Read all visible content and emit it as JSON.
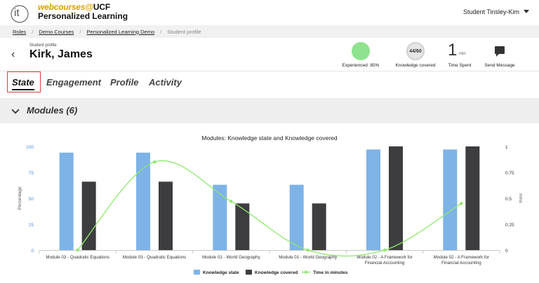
{
  "app": {
    "logo_text": "it",
    "brand_line1_prefix": "webcourses",
    "brand_line1_at": "@",
    "brand_line1_suffix": "UCF",
    "brand_line2": "Personalized Learning",
    "user_name": "Student Tinsley-Kim"
  },
  "breadcrumb": [
    "Roles",
    "Demo Courses",
    "Personalized Learning Demo",
    "Student profile"
  ],
  "header": {
    "label": "Student profile",
    "name": "Kirk, James",
    "stats": {
      "experienced": "Experienced: 85%",
      "knowledge_badge": "44/60",
      "knowledge_caption": "Knowledge covered",
      "time_value": "1",
      "time_unit": "min",
      "time_caption": "Time Spent",
      "message_caption": "Send Message"
    }
  },
  "tabs": [
    "State",
    "Engagement",
    "Profile",
    "Activity"
  ],
  "active_tab": "State",
  "section": {
    "title": "Modules (6)"
  },
  "colors": {
    "knowledge_state": "#7eb3e8",
    "knowledge_covered": "#3d3d40",
    "time": "#8ee86a",
    "experienced": "#8fe38f"
  },
  "chart_data": {
    "type": "bar",
    "title": "Modules: Knowledge state and Knowledge covered",
    "categories": [
      [
        "Module 03 - Quadratic Equations"
      ],
      [
        "Module 03 - Quadratic Equations"
      ],
      [
        "Module 01 - World Geography"
      ],
      [
        "Module 01 - World Geography"
      ],
      [
        "Module 02 - A Framework for",
        "Financial Accounting"
      ],
      [
        "Module 02 - A Framework for",
        "Financial Accounting"
      ]
    ],
    "series": [
      {
        "name": "Knowledge state",
        "type": "bar",
        "axis": "left",
        "values": [
          94,
          94,
          63,
          63,
          97,
          97
        ]
      },
      {
        "name": "Knowledge covered",
        "type": "bar",
        "axis": "left",
        "values": [
          66,
          66,
          45,
          45,
          100,
          100
        ]
      },
      {
        "name": "Time in minutes",
        "type": "spline",
        "axis": "right",
        "values": [
          0,
          0.85,
          0.47,
          0,
          0,
          0.45
        ]
      }
    ],
    "ylabel": "Percentage",
    "y2label": "mins",
    "ylim": [
      0,
      100
    ],
    "y2lim": [
      0,
      1
    ],
    "yticks": [
      "0",
      "25",
      "50",
      "75",
      "100"
    ],
    "y2ticks": [
      "0",
      "0.25",
      "0.5",
      "0.75",
      "1"
    ],
    "legend_position": "bottom",
    "grid": false
  }
}
